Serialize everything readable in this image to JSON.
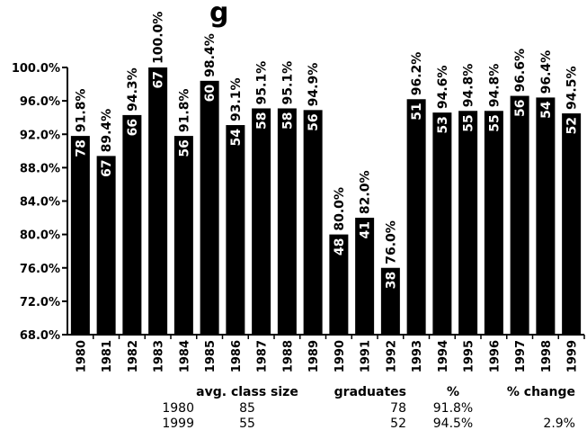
{
  "title_fragment": "g",
  "chart_data": {
    "type": "bar",
    "categories": [
      "1980",
      "1981",
      "1982",
      "1983",
      "1984",
      "1985",
      "1986",
      "1987",
      "1988",
      "1989",
      "1990",
      "1991",
      "1992",
      "1993",
      "1994",
      "1995",
      "1996",
      "1997",
      "1998",
      "1999"
    ],
    "values": [
      91.8,
      89.4,
      94.3,
      100.0,
      91.8,
      98.4,
      93.1,
      95.1,
      95.1,
      94.9,
      80.0,
      82.0,
      76.0,
      96.2,
      94.6,
      94.8,
      94.8,
      96.6,
      96.4,
      94.5
    ],
    "value_labels": [
      "91.8%",
      "89.4%",
      "94.3%",
      "100.0%",
      "91.8%",
      "98.4%",
      "93.1%",
      "95.1%",
      "95.1%",
      "94.9%",
      "80.0%",
      "82.0%",
      "76.0%",
      "96.2%",
      "94.6%",
      "94.8%",
      "94.8%",
      "96.6%",
      "96.4%",
      "94.5%"
    ],
    "graduates": [
      78,
      67,
      66,
      67,
      56,
      60,
      54,
      58,
      58,
      56,
      48,
      41,
      38,
      51,
      53,
      55,
      55,
      56,
      54,
      52
    ],
    "yticks": [
      "68.0%",
      "72.0%",
      "76.0%",
      "80.0%",
      "84.0%",
      "88.0%",
      "92.0%",
      "96.0%",
      "100.0%"
    ],
    "ylim": [
      68,
      100
    ],
    "bar_color": "#000000",
    "grid": false
  },
  "stats": {
    "headers": {
      "avg": "avg. class size",
      "grad": "graduates",
      "pct": "%",
      "chg": "% change"
    },
    "rows": [
      {
        "year": "1980",
        "avg": "85",
        "grad": "78",
        "pct": "91.8%",
        "chg": ""
      },
      {
        "year": "1999",
        "avg": "55",
        "grad": "52",
        "pct": "94.5%",
        "chg": "2.9%"
      }
    ]
  }
}
